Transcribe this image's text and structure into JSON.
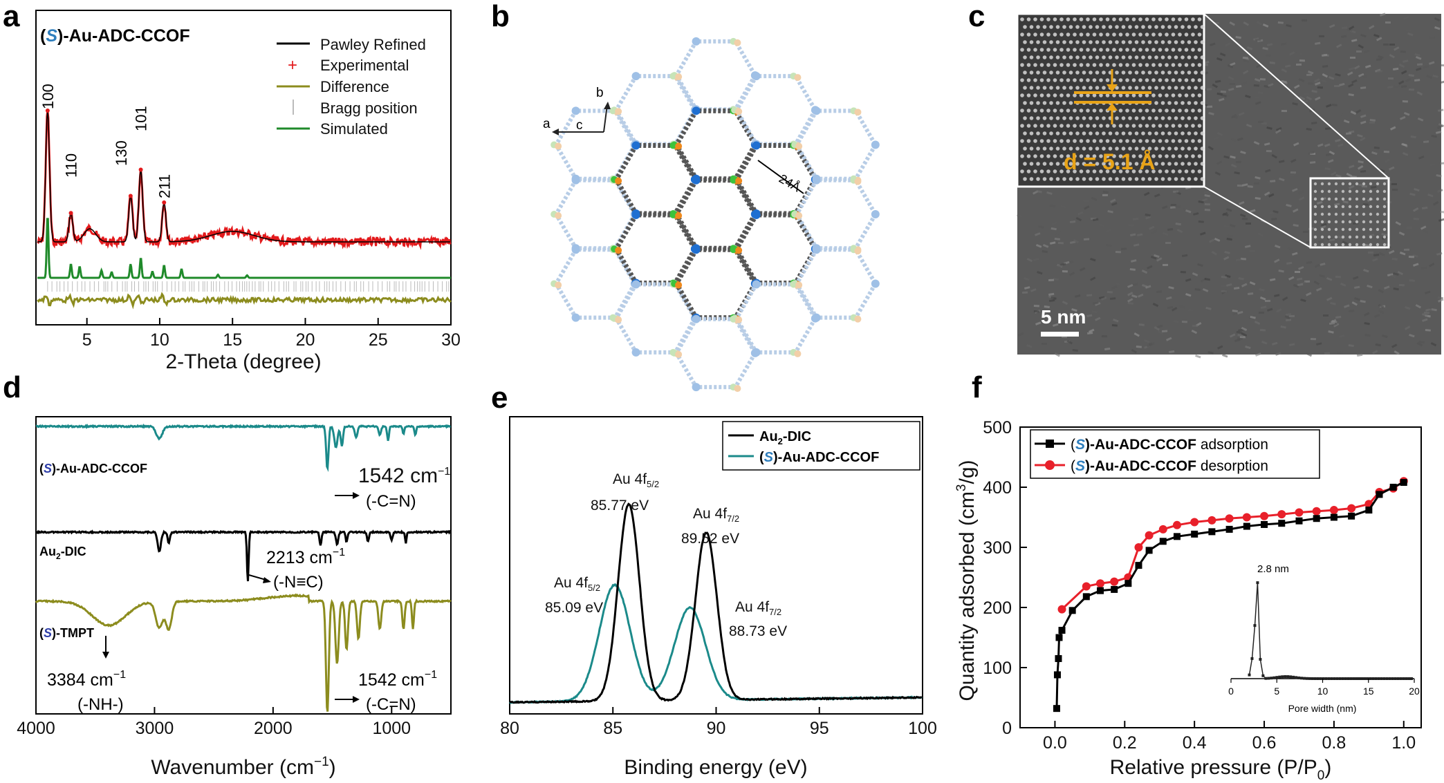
{
  "panel_labels": {
    "a": "a",
    "b": "b",
    "c": "c",
    "d": "d",
    "e": "e",
    "f": "f"
  },
  "colors": {
    "black": "#000000",
    "red": "#e31a1c",
    "olive": "#8c8c1e",
    "green": "#1f8a2a",
    "teal": "#1b8a8a",
    "blue_s": "#2e7ebd",
    "red_f": "#e8202a",
    "gold": "#e8a317"
  },
  "panel_a": {
    "sample_label": {
      "s": "S",
      "prefix": "(",
      "suffix": ")-Au-ADC-CCOF"
    },
    "peaks": [
      {
        "label": "100",
        "x": 2.3
      },
      {
        "label": "110",
        "x": 3.9
      },
      {
        "label": "130",
        "x": 8.0
      },
      {
        "label": "101",
        "x": 8.7
      },
      {
        "label": "211",
        "x": 10.3
      }
    ],
    "legend": [
      "Pawley Refined",
      "Experimental",
      "Difference",
      "Bragg position",
      "Simulated"
    ],
    "xlabel": "2-Theta (degree)",
    "xticks": [
      "5",
      "10",
      "15",
      "20",
      "25",
      "30"
    ]
  },
  "panel_b": {
    "axes": {
      "a": "a",
      "b": "b",
      "c": "c"
    },
    "pore": "24Å"
  },
  "panel_c": {
    "d_label": "d = 5.1 Å",
    "scale": "5 nm"
  },
  "panel_d": {
    "labels": {
      "s": "S",
      "ccof_suffix": ")-Au-ADC-CCOF",
      "dic": "Au",
      "dic_sub": "2",
      "dic_suffix": "-DIC",
      "tmpt_suffix": ")-TMPT",
      "paren": "("
    },
    "annotations": {
      "a1": "1542 cm",
      "a1b": "(-C=N)",
      "a2": "2213 cm",
      "a2b": "(-N≡C)",
      "a3": "3384 cm",
      "a3b": "(-NH-)",
      "a4": "1542 cm",
      "a4b": "(-C=N)",
      "sup": "−1"
    },
    "xlabel": "Wavenumber (cm",
    "xlabel_sup": "−1",
    "xlabel_end": ")",
    "xticks": [
      "4000",
      "3000",
      "2000",
      "1000"
    ]
  },
  "panel_e": {
    "legend": {
      "dic": "Au",
      "dic_sub": "2",
      "dic_suffix": "-DIC",
      "s": "S",
      "ccof_suffix": ")-Au-ADC-CCOF",
      "paren": "("
    },
    "peaks": {
      "p1": "Au 4f",
      "p1sub": "5/2",
      "p1v": "85.77 eV",
      "p2": "Au 4f",
      "p2sub": "7/2",
      "p2v": "89.52 eV",
      "p3": "Au 4f",
      "p3sub": "5/2",
      "p3v": "85.09 eV",
      "p4": "Au 4f",
      "p4sub": "7/2",
      "p4v": "88.73 eV"
    },
    "xlabel": "Binding energy (eV)",
    "xticks": [
      "80",
      "85",
      "90",
      "95",
      "100"
    ]
  },
  "panel_f": {
    "legend": {
      "s": "S",
      "paren": "(",
      "ads": ")-Au-ADC-CCOF",
      "ads_tail": " adsorption",
      "des": ")-Au-ADC-CCOF",
      "des_tail": " desorption"
    },
    "ylabel": "Quantity adsorbed (cm",
    "ylabel_sup": "3",
    "ylabel_end": "/g)",
    "xlabel": "Relative pressure (P/P",
    "xlabel_sub": "0",
    "xlabel_end": ")",
    "xticks": [
      "0.0",
      "0.2",
      "0.4",
      "0.6",
      "0.8",
      "1.0"
    ],
    "yticks": [
      "0",
      "100",
      "200",
      "300",
      "400",
      "500"
    ],
    "inset": {
      "peak": "2.8 nm",
      "xlabel": "Pore width (nm)",
      "xticks": [
        "0",
        "5",
        "10",
        "15",
        "20"
      ]
    }
  },
  "chart_data": [
    {
      "type": "line",
      "panel": "a",
      "xlabel": "2-Theta (degree)",
      "xlim": [
        1.5,
        30
      ],
      "series": [
        {
          "name": "Experimental",
          "x": [
            2.3,
            3.9,
            8.0,
            8.7,
            10.3
          ],
          "values": [
            100,
            22,
            35,
            55,
            30
          ]
        },
        {
          "name": "Simulated",
          "x": [
            2.3,
            3.9,
            4.5,
            6.0,
            6.7,
            8.0,
            8.7,
            9.5,
            10.3,
            11.5,
            14.0,
            16.0
          ],
          "values": [
            100,
            22,
            18,
            12,
            9,
            22,
            32,
            10,
            20,
            14,
            5,
            4
          ]
        }
      ]
    },
    {
      "type": "line",
      "panel": "e",
      "xlabel": "Binding energy (eV)",
      "xlim": [
        80,
        100
      ],
      "series": [
        {
          "name": "Au2-DIC",
          "x": [
            85.77,
            89.52
          ],
          "values": [
            1.0,
            0.85
          ]
        },
        {
          "name": "(S)-Au-ADC-CCOF",
          "x": [
            85.09,
            88.73
          ],
          "values": [
            0.59,
            0.47
          ]
        }
      ]
    },
    {
      "type": "line",
      "panel": "f",
      "xlabel": "Relative pressure (P/P0)",
      "ylabel": "Quantity adsorbed (cm3/g)",
      "xlim": [
        -0.1,
        1.05
      ],
      "ylim": [
        0,
        500
      ],
      "series": [
        {
          "name": "(S)-Au-ADC-CCOF adsorption",
          "x": [
            0.005,
            0.007,
            0.01,
            0.012,
            0.02,
            0.05,
            0.09,
            0.13,
            0.17,
            0.21,
            0.24,
            0.27,
            0.31,
            0.35,
            0.4,
            0.45,
            0.5,
            0.55,
            0.6,
            0.65,
            0.7,
            0.75,
            0.8,
            0.85,
            0.9,
            0.93,
            0.97,
            1.0
          ],
          "values": [
            32,
            88,
            115,
            150,
            162,
            195,
            218,
            228,
            230,
            240,
            270,
            295,
            310,
            318,
            322,
            326,
            330,
            335,
            338,
            340,
            344,
            348,
            350,
            352,
            362,
            388,
            400,
            408
          ]
        },
        {
          "name": "(S)-Au-ADC-CCOF desorption",
          "x": [
            1.0,
            0.97,
            0.93,
            0.9,
            0.85,
            0.8,
            0.75,
            0.7,
            0.65,
            0.6,
            0.55,
            0.5,
            0.45,
            0.4,
            0.35,
            0.31,
            0.27,
            0.24,
            0.21,
            0.17,
            0.13,
            0.09,
            0.02
          ],
          "values": [
            410,
            398,
            392,
            372,
            365,
            362,
            360,
            358,
            355,
            352,
            350,
            348,
            345,
            342,
            337,
            330,
            320,
            300,
            250,
            243,
            240,
            235,
            197
          ]
        }
      ]
    }
  ]
}
